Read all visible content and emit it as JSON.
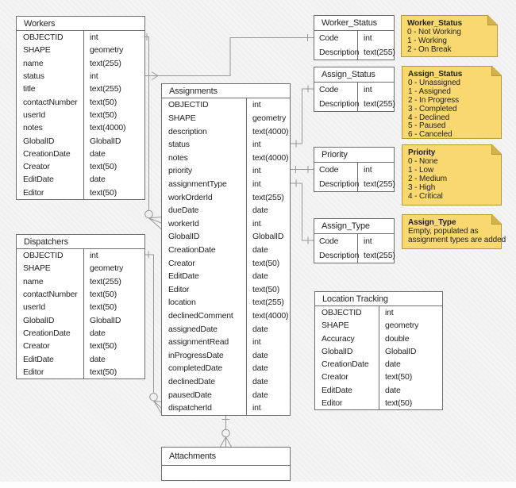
{
  "diagram": {
    "background_color": "#f1f1f1",
    "wire_color": "#989898",
    "table_border_color": "#6e6e6e",
    "note_fill_color": "#f9d96f",
    "note_fold_color": "#d3b24a"
  },
  "tables": {
    "workers": {
      "title": "Workers",
      "rows": [
        [
          "OBJECTID",
          "int"
        ],
        [
          "SHAPE",
          "geometry"
        ],
        [
          "name",
          "text(255)"
        ],
        [
          "status",
          "int"
        ],
        [
          "title",
          "text(255)"
        ],
        [
          "contactNumber",
          "text(50)"
        ],
        [
          "userId",
          "text(50)"
        ],
        [
          "notes",
          "text(4000)"
        ],
        [
          "GlobalID",
          "GlobalID"
        ],
        [
          "CreationDate",
          "date"
        ],
        [
          "Creator",
          "text(50)"
        ],
        [
          "EditDate",
          "date"
        ],
        [
          "Editor",
          "text(50)"
        ]
      ]
    },
    "dispatchers": {
      "title": "Dispatchers",
      "rows": [
        [
          "OBJECTID",
          "int"
        ],
        [
          "SHAPE",
          "geometry"
        ],
        [
          "name",
          "text(255)"
        ],
        [
          "contactNumber",
          "text(50)"
        ],
        [
          "userId",
          "text(50)"
        ],
        [
          "GlobalID",
          "GlobalID"
        ],
        [
          "CreationDate",
          "date"
        ],
        [
          "Creator",
          "text(50)"
        ],
        [
          "EditDate",
          "date"
        ],
        [
          "Editor",
          "text(50)"
        ]
      ]
    },
    "assignments": {
      "title": "Assignments",
      "rows": [
        [
          "OBJECTID",
          "int"
        ],
        [
          "SHAPE",
          "geometry"
        ],
        [
          "description",
          "text(4000)"
        ],
        [
          "status",
          "int"
        ],
        [
          "notes",
          "text(4000)"
        ],
        [
          "priority",
          "int"
        ],
        [
          "assignmentType",
          "int"
        ],
        [
          "workOrderId",
          "text(255)"
        ],
        [
          "dueDate",
          "date"
        ],
        [
          "workerId",
          "int"
        ],
        [
          "GlobalID",
          "GlobalID"
        ],
        [
          "CreationDate",
          "date"
        ],
        [
          "Creator",
          "text(50)"
        ],
        [
          "EditDate",
          "date"
        ],
        [
          "Editor",
          "text(50)"
        ],
        [
          "location",
          "text(255)"
        ],
        [
          "declinedComment",
          "text(4000)"
        ],
        [
          "assignedDate",
          "date"
        ],
        [
          "assignmentRead",
          "int"
        ],
        [
          "inProgressDate",
          "date"
        ],
        [
          "completedDate",
          "date"
        ],
        [
          "declinedDate",
          "date"
        ],
        [
          "pausedDate",
          "date"
        ],
        [
          "dispatcherId",
          "int"
        ]
      ]
    },
    "worker_status": {
      "title": "Worker_Status",
      "rows": [
        [
          "Code",
          "int"
        ],
        [
          "Description",
          "text(255)"
        ]
      ]
    },
    "assign_status": {
      "title": "Assign_Status",
      "rows": [
        [
          "Code",
          "int"
        ],
        [
          "Description",
          "text(255)"
        ]
      ]
    },
    "priority": {
      "title": "Priority",
      "rows": [
        [
          "Code",
          "int"
        ],
        [
          "Description",
          "text(255)"
        ]
      ]
    },
    "assign_type": {
      "title": "Assign_Type",
      "rows": [
        [
          "Code",
          "int"
        ],
        [
          "Description",
          "text(255)"
        ]
      ]
    },
    "location_tracking": {
      "title": "Location Tracking",
      "rows": [
        [
          "OBJECTID",
          "int"
        ],
        [
          "SHAPE",
          "geometry"
        ],
        [
          "Accuracy",
          "double"
        ],
        [
          "GlobalID",
          "GlobalID"
        ],
        [
          "CreationDate",
          "date"
        ],
        [
          "Creator",
          "text(50)"
        ],
        [
          "EditDate",
          "date"
        ],
        [
          "Editor",
          "text(50)"
        ]
      ]
    },
    "attachments": {
      "title": "Attachments",
      "rows": []
    }
  },
  "notes": {
    "worker_status": {
      "title": "Worker_Status",
      "lines": [
        "0 - Not Working",
        "1 - Working",
        "2 - On Break"
      ]
    },
    "assign_status": {
      "title": "Assign_Status",
      "lines": [
        "0 - Unassigned",
        "1 - Assigned",
        "2 - In Progress",
        "3 - Completed",
        "4 - Declined",
        "5 - Paused",
        "6 - Canceled"
      ]
    },
    "priority": {
      "title": "Priority",
      "lines": [
        "0 - None",
        "1 - Low",
        "2 - Medium",
        "3 - High",
        "4 - Critical"
      ]
    },
    "assign_type": {
      "title": "Assign_Type",
      "lines": [
        "Empty, populated as",
        "assignment types are added"
      ]
    }
  },
  "relationships": [
    {
      "from": "Workers.OBJECTID",
      "to": "Assignments.workerId",
      "from_end": "one",
      "to_end": "zero-or-many"
    },
    {
      "from": "Worker_Status.Code",
      "to": "Workers.status",
      "from_end": "one",
      "to_end": "many"
    },
    {
      "from": "Dispatchers.OBJECTID",
      "to": "Assignments.dispatcherId",
      "from_end": "one",
      "to_end": "zero-or-many"
    },
    {
      "from": "Assign_Status.Code",
      "to": "Assignments.status",
      "from_end": "one",
      "to_end": "one"
    },
    {
      "from": "Priority.Code",
      "to": "Assignments.priority",
      "from_end": "one",
      "to_end": "one"
    },
    {
      "from": "Assign_Type.Code",
      "to": "Assignments.assignmentType",
      "from_end": "one",
      "to_end": "one"
    },
    {
      "from": "Assignments",
      "to": "Attachments",
      "from_end": "one",
      "to_end": "zero-or-many"
    }
  ]
}
